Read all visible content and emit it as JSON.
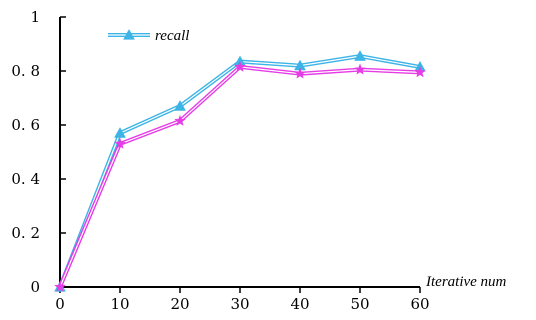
{
  "chart_data": {
    "type": "line",
    "x": [
      0,
      10,
      20,
      30,
      40,
      50,
      60
    ],
    "xlabel": "Iterative num",
    "ylabel": "",
    "xlim": [
      0,
      60
    ],
    "ylim": [
      0,
      1
    ],
    "xticks": [
      "0",
      "10",
      "20",
      "30",
      "40",
      "50",
      "60"
    ],
    "yticks": [
      "0",
      "0. 2",
      "0. 4",
      "0. 6",
      "0. 8",
      "1"
    ],
    "grid": false,
    "legend_position": "top-left",
    "series": [
      {
        "name": "recall",
        "values": [
          0.0,
          0.57,
          0.67,
          0.835,
          0.82,
          0.855,
          0.815
        ],
        "color": "#3db4e6",
        "marker": "triangle"
      },
      {
        "name": "",
        "values": [
          0.0,
          0.53,
          0.615,
          0.815,
          0.79,
          0.805,
          0.795
        ],
        "color": "#e63ce6",
        "marker": "star"
      }
    ]
  }
}
